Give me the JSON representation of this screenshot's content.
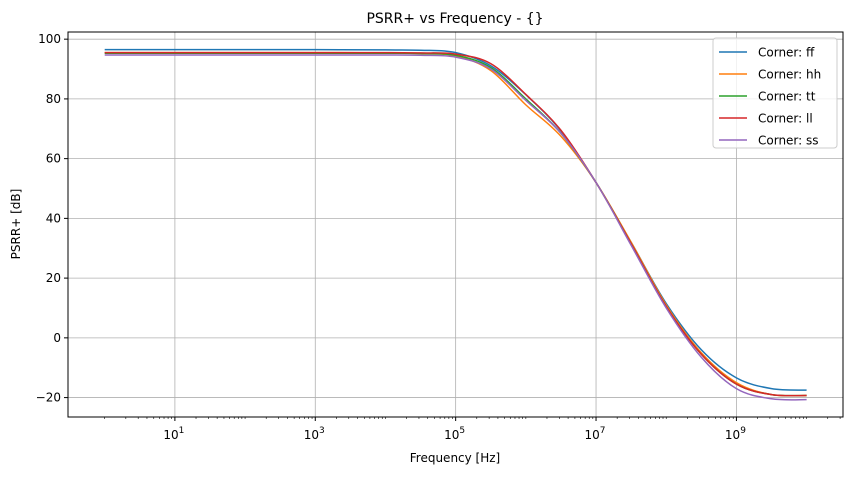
{
  "chart_data": {
    "type": "line",
    "title": "PSRR+ vs Frequency - {}",
    "xlabel": "Frequency [Hz]",
    "ylabel": "PSRR+ [dB]",
    "xscale": "log",
    "xlim": [
      0.3,
      33000000000
    ],
    "ylim": [
      -26.5,
      102.4
    ],
    "grid": true,
    "legend_position": "top-right",
    "x_ticks": [
      {
        "base": "10",
        "exp": "1",
        "value": 10
      },
      {
        "base": "10",
        "exp": "3",
        "value": 1000
      },
      {
        "base": "10",
        "exp": "5",
        "value": 100000
      },
      {
        "base": "10",
        "exp": "7",
        "value": 10000000
      },
      {
        "base": "10",
        "exp": "9",
        "value": 1000000000
      }
    ],
    "y_ticks": [
      "−20",
      "0",
      "20",
      "40",
      "60",
      "80",
      "100"
    ],
    "y_tick_values": [
      -20,
      0,
      20,
      40,
      60,
      80,
      100
    ],
    "x": [
      1,
      10,
      100,
      1000,
      10000,
      31623,
      100000,
      316228,
      1000000,
      3162278,
      10000000,
      31622777,
      100000000,
      316227766,
      1000000000,
      3162277660,
      10000000000
    ],
    "series": [
      {
        "name": "Corner: ff",
        "color": "#1f77b4",
        "values": [
          96.5,
          96.5,
          96.5,
          96.5,
          96.4,
          96.3,
          95.5,
          91.1,
          81.4,
          69.3,
          52,
          32,
          11.5,
          -4,
          -13.4,
          -17,
          -17.5
        ]
      },
      {
        "name": "Corner: hh",
        "color": "#ff7f0e",
        "values": [
          95.5,
          95.5,
          95.5,
          95.5,
          95.4,
          95.2,
          94.4,
          89.5,
          78,
          67.5,
          52,
          32,
          11,
          -5,
          -15,
          -19,
          -19.3
        ]
      },
      {
        "name": "Corner: tt",
        "color": "#2ca02c",
        "values": [
          95.3,
          95.3,
          95.3,
          95.3,
          95.3,
          95.2,
          94.6,
          90.5,
          80,
          68.5,
          52,
          31.5,
          10.5,
          -5.5,
          -15.5,
          -19,
          -19.3
        ]
      },
      {
        "name": "Corner: ll",
        "color": "#d62728",
        "values": [
          95.5,
          95.5,
          95.5,
          95.5,
          95.5,
          95.4,
          95,
          91.8,
          81.5,
          69.5,
          52,
          31.5,
          10.5,
          -5.5,
          -15.5,
          -19,
          -19.3
        ]
      },
      {
        "name": "Corner: ss",
        "color": "#9467bd",
        "values": [
          94.7,
          94.7,
          94.7,
          94.7,
          94.7,
          94.6,
          94,
          90,
          79.5,
          68.5,
          52,
          31,
          10,
          -6.5,
          -17,
          -20.4,
          -20.7
        ]
      }
    ]
  }
}
